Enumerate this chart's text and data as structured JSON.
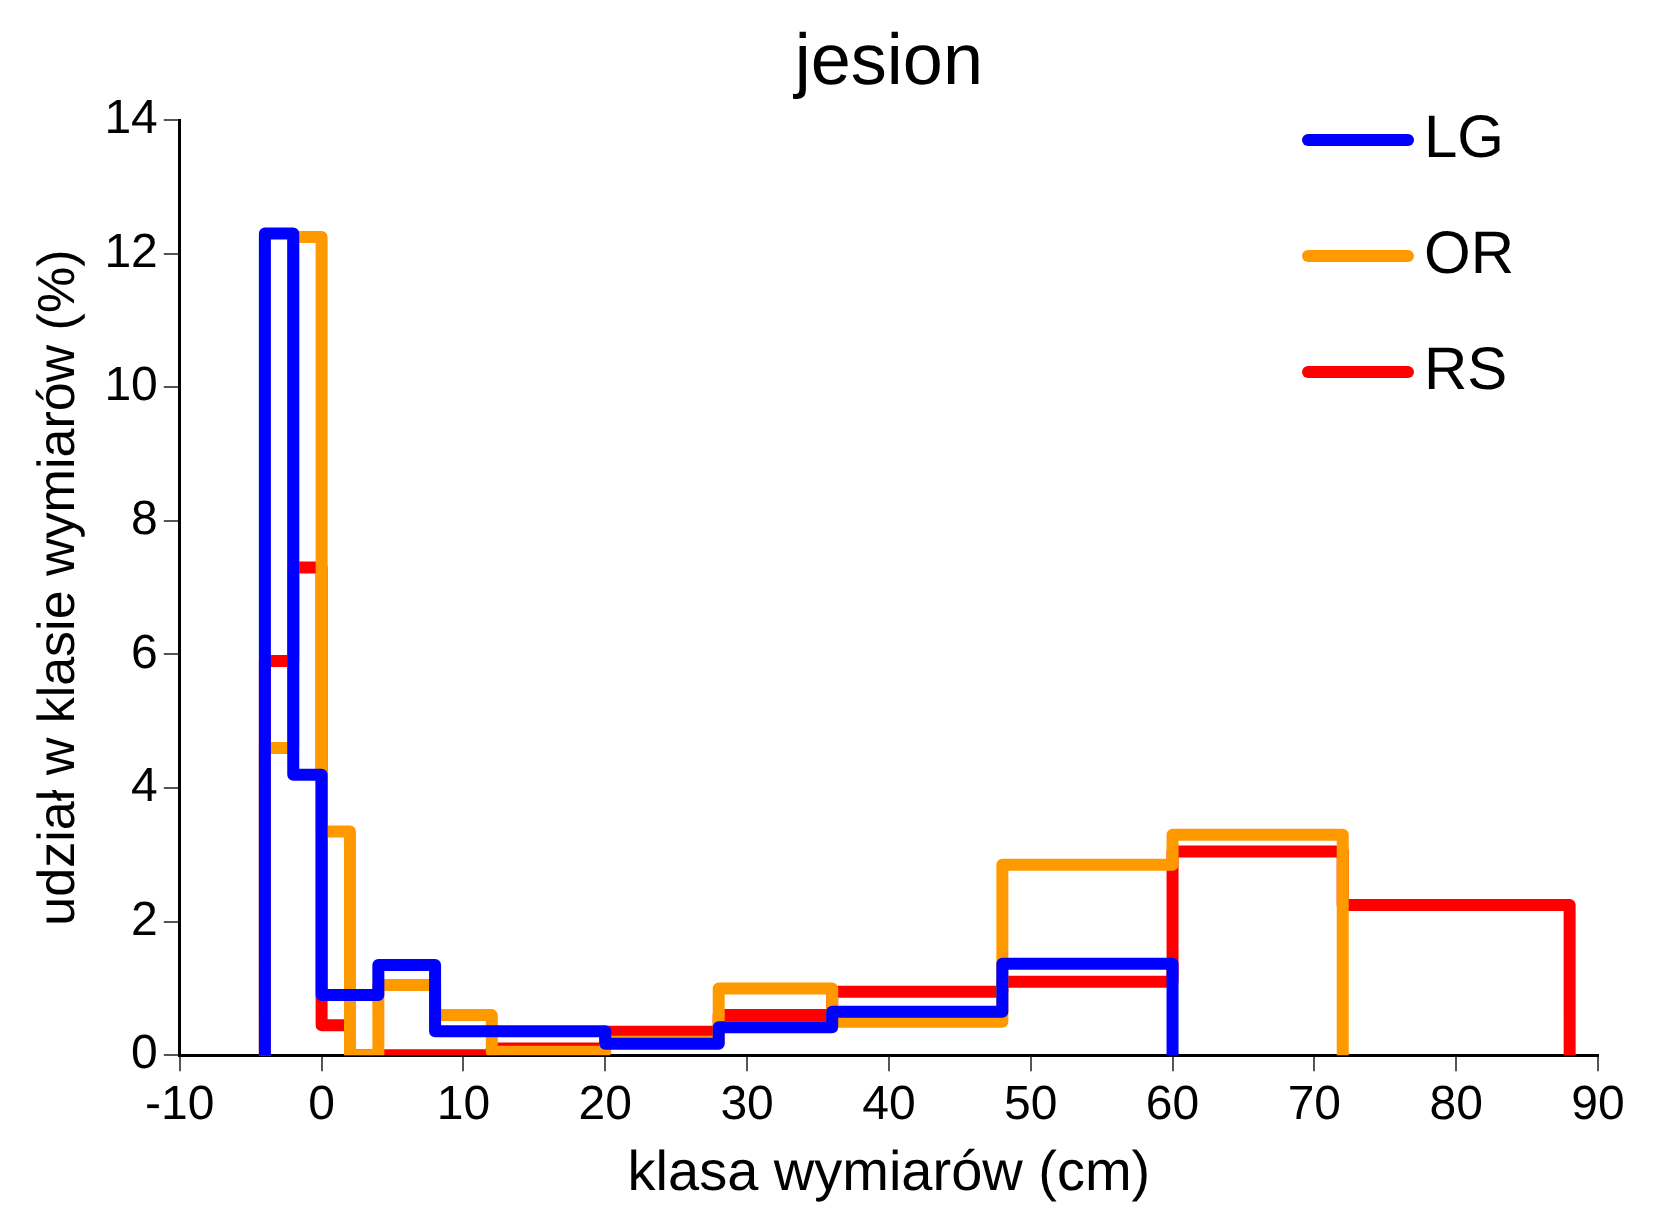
{
  "chart_data": {
    "type": "histogram",
    "title": "jesion",
    "xlabel": "klasa wymiarów (cm)",
    "ylabel": "udział w klasie wymiarów (%)",
    "bins": [
      -4,
      -2,
      0,
      2,
      4,
      8,
      12,
      20,
      28,
      36,
      48,
      60,
      72,
      88
    ],
    "series": [
      {
        "name": "LG",
        "color": "#0000ff",
        "bins": [
          -4,
          -2,
          0,
          2,
          4,
          8,
          12,
          20,
          28,
          36,
          48,
          60
        ],
        "values": [
          12.3,
          4.2,
          0.9,
          0.9,
          1.35,
          0.36,
          0.36,
          0.17,
          0.42,
          0.65,
          1.37
        ]
      },
      {
        "name": "OR",
        "color": "#ff9900",
        "bins": [
          -4,
          -2,
          0,
          2,
          4,
          8,
          12,
          20,
          28,
          36,
          48,
          60,
          72
        ],
        "values": [
          4.6,
          12.25,
          3.35,
          0,
          1.05,
          0.6,
          0.05,
          0.2,
          1.0,
          0.5,
          2.85,
          3.3
        ]
      },
      {
        "name": "RS",
        "color": "#ff0000",
        "values": [
          5.9,
          7.3,
          0.45,
          0,
          0,
          0,
          0.1,
          0.35,
          0.6,
          0.95,
          1.1,
          3.05,
          2.25
        ]
      }
    ],
    "xlim": [
      -10,
      90
    ],
    "xticks": [
      -10,
      0,
      10,
      20,
      30,
      40,
      50,
      60,
      70,
      80,
      90
    ],
    "ylim": [
      0,
      14
    ],
    "yticks": [
      0,
      2,
      4,
      6,
      8,
      10,
      12,
      14
    ],
    "grid": false,
    "legend": "top right",
    "line_style": "solid"
  }
}
